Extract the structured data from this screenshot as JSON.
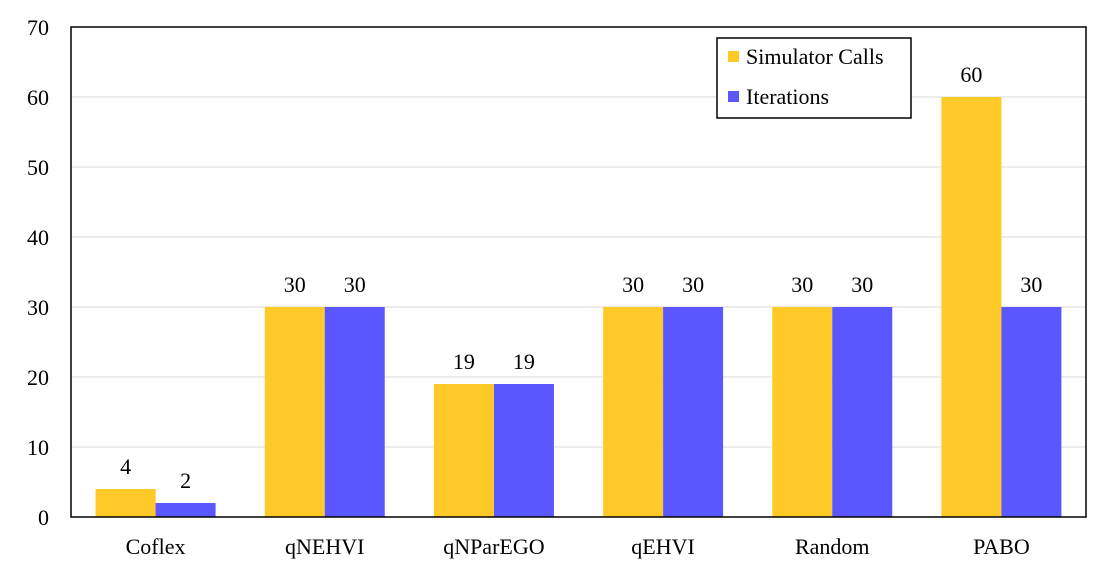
{
  "chart_data": {
    "type": "bar",
    "title": "",
    "xlabel": "",
    "ylabel": "",
    "categories": [
      "Coflex",
      "qNEHVI",
      "qNParEGO",
      "qEHVI",
      "Random",
      "PABO"
    ],
    "series": [
      {
        "name": "Simulator Calls",
        "values": [
          4,
          30,
          19,
          30,
          30,
          60
        ],
        "color": "#FFC928"
      },
      {
        "name": "Iterations",
        "values": [
          2,
          30,
          19,
          30,
          30,
          30
        ],
        "color": "#5B57FF"
      }
    ],
    "ylim": [
      0,
      70
    ],
    "yticks": [
      0,
      10,
      20,
      30,
      40,
      50,
      60,
      70
    ],
    "grid": "horizontal",
    "legend_position": "top-right",
    "data_labels": true
  }
}
